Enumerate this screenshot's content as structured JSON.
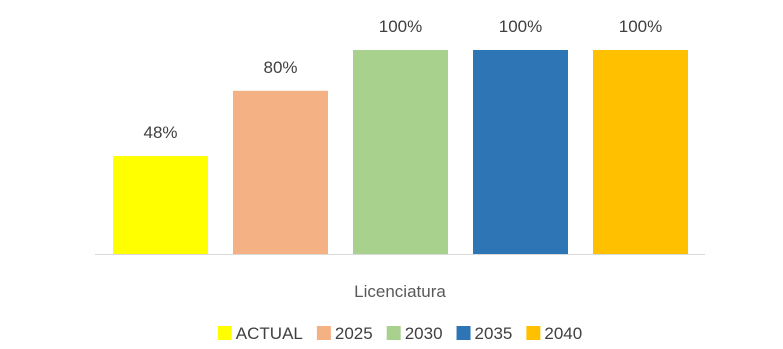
{
  "chart_data": {
    "type": "bar",
    "categories": [
      "Licenciatura"
    ],
    "series": [
      {
        "name": "ACTUAL",
        "values": [
          48
        ],
        "label": "48%",
        "color": "#FFFF00"
      },
      {
        "name": "2025",
        "values": [
          80
        ],
        "label": "80%",
        "color": "#F4B183"
      },
      {
        "name": "2030",
        "values": [
          100
        ],
        "label": "100%",
        "color": "#A9D18E"
      },
      {
        "name": "2035",
        "values": [
          100
        ],
        "label": "100%",
        "color": "#2E75B6"
      },
      {
        "name": "2040",
        "values": [
          100
        ],
        "label": "100%",
        "color": "#FFC000"
      }
    ],
    "ylim": [
      0,
      100
    ],
    "grid": false,
    "legend": "bottom",
    "axis_color": "#D9D9D9"
  }
}
